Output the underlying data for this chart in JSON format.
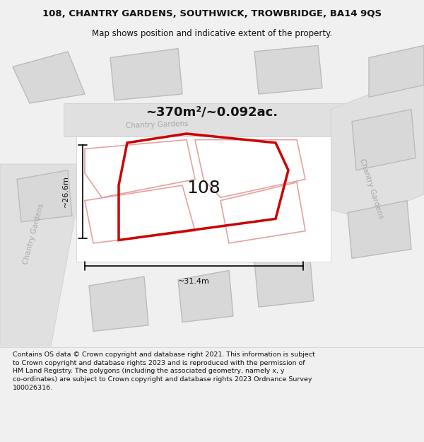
{
  "title_line1": "108, CHANTRY GARDENS, SOUTHWICK, TROWBRIDGE, BA14 9QS",
  "title_line2": "Map shows position and indicative extent of the property.",
  "area_label": "~370m²/~0.092ac.",
  "plot_number": "108",
  "dim_height": "~26.6m",
  "dim_width": "~31.4m",
  "footer_lines": [
    "Contains OS data © Crown copyright and database right 2021. This information is subject",
    "to Crown copyright and database rights 2023 and is reproduced with the permission of",
    "HM Land Registry. The polygons (including the associated geometry, namely x, y",
    "co-ordinates) are subject to Crown copyright and database rights 2023 Ordnance Survey",
    "100026316."
  ],
  "bg_color": "#f0f0f0",
  "map_bg": "#ffffff",
  "building_color": "#d8d8d8",
  "building_edge": "#bbbbbb",
  "red_line_color": "#cc0000",
  "pink_line_color": "#e8a0a0",
  "street_label_color": "#aaaaaa",
  "road_fill": "#e0e0e0",
  "road_edge": "#cccccc"
}
